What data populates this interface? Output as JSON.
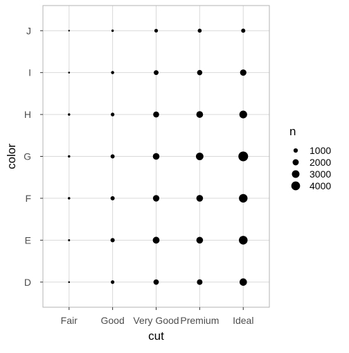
{
  "chart_data": {
    "type": "scatter",
    "xlabel": "cut",
    "ylabel": "color",
    "x_categories": [
      "Fair",
      "Good",
      "Very Good",
      "Premium",
      "Ideal"
    ],
    "y_categories": [
      "D",
      "E",
      "F",
      "G",
      "H",
      "I",
      "J"
    ],
    "size_variable": "n",
    "size_range": [
      0,
      4884
    ],
    "points": [
      {
        "x": "Fair",
        "y": "D",
        "n": 163
      },
      {
        "x": "Fair",
        "y": "E",
        "n": 224
      },
      {
        "x": "Fair",
        "y": "F",
        "n": 312
      },
      {
        "x": "Fair",
        "y": "G",
        "n": 314
      },
      {
        "x": "Fair",
        "y": "H",
        "n": 303
      },
      {
        "x": "Fair",
        "y": "I",
        "n": 175
      },
      {
        "x": "Fair",
        "y": "J",
        "n": 119
      },
      {
        "x": "Good",
        "y": "D",
        "n": 662
      },
      {
        "x": "Good",
        "y": "E",
        "n": 933
      },
      {
        "x": "Good",
        "y": "F",
        "n": 909
      },
      {
        "x": "Good",
        "y": "G",
        "n": 871
      },
      {
        "x": "Good",
        "y": "H",
        "n": 702
      },
      {
        "x": "Good",
        "y": "I",
        "n": 522
      },
      {
        "x": "Good",
        "y": "J",
        "n": 307
      },
      {
        "x": "Very Good",
        "y": "D",
        "n": 1513
      },
      {
        "x": "Very Good",
        "y": "E",
        "n": 2400
      },
      {
        "x": "Very Good",
        "y": "F",
        "n": 2164
      },
      {
        "x": "Very Good",
        "y": "G",
        "n": 2299
      },
      {
        "x": "Very Good",
        "y": "H",
        "n": 1824
      },
      {
        "x": "Very Good",
        "y": "I",
        "n": 1204
      },
      {
        "x": "Very Good",
        "y": "J",
        "n": 678
      },
      {
        "x": "Premium",
        "y": "D",
        "n": 1603
      },
      {
        "x": "Premium",
        "y": "E",
        "n": 2337
      },
      {
        "x": "Premium",
        "y": "F",
        "n": 2331
      },
      {
        "x": "Premium",
        "y": "G",
        "n": 2924
      },
      {
        "x": "Premium",
        "y": "H",
        "n": 2360
      },
      {
        "x": "Premium",
        "y": "I",
        "n": 1428
      },
      {
        "x": "Premium",
        "y": "J",
        "n": 808
      },
      {
        "x": "Ideal",
        "y": "D",
        "n": 2834
      },
      {
        "x": "Ideal",
        "y": "E",
        "n": 3903
      },
      {
        "x": "Ideal",
        "y": "F",
        "n": 3826
      },
      {
        "x": "Ideal",
        "y": "G",
        "n": 4884
      },
      {
        "x": "Ideal",
        "y": "H",
        "n": 3115
      },
      {
        "x": "Ideal",
        "y": "I",
        "n": 2093
      },
      {
        "x": "Ideal",
        "y": "J",
        "n": 896
      }
    ],
    "legend": {
      "title": "n",
      "position": "right",
      "entries": [
        {
          "label": "1000",
          "value": 1000
        },
        {
          "label": "2000",
          "value": 2000
        },
        {
          "label": "3000",
          "value": 3000
        },
        {
          "label": "4000",
          "value": 4000
        }
      ]
    },
    "grid": true,
    "panel_border": true,
    "point_color": "#000000",
    "grid_color": "#d9d9d9",
    "border_color": "#b3b3b3"
  }
}
